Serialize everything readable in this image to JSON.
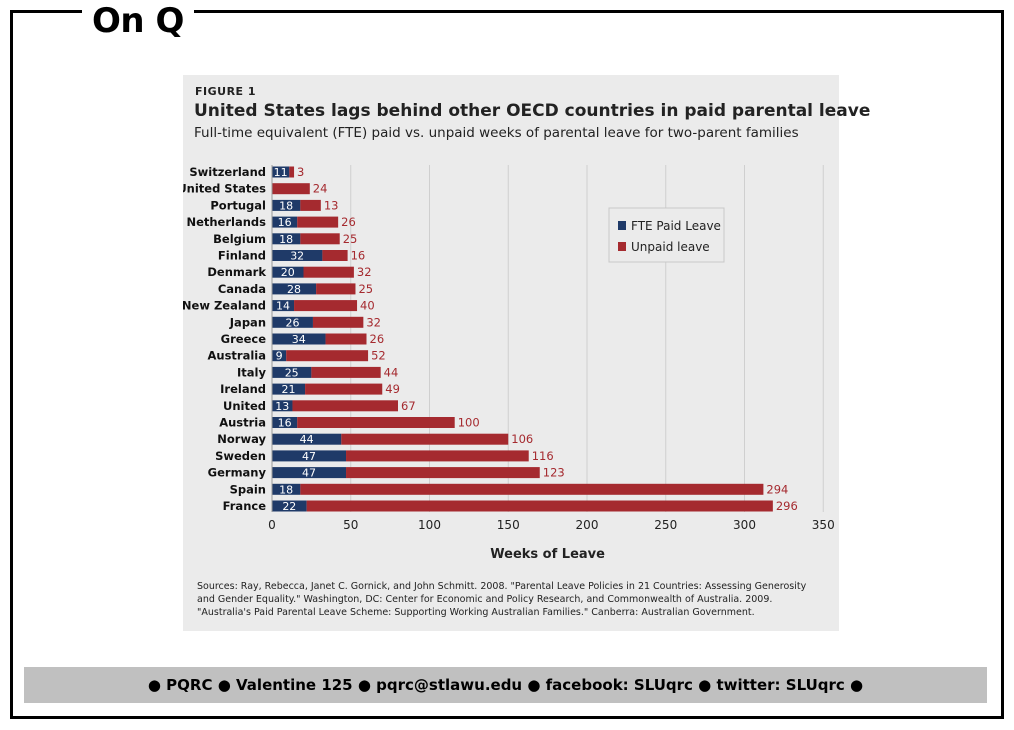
{
  "brand": {
    "title": "On Q"
  },
  "figure": {
    "label": "FIGURE 1",
    "title": "United States lags behind other OECD countries in paid parental leave",
    "subtitle": "Full-time equivalent (FTE) paid vs. unpaid weeks of parental leave for two-parent families",
    "sources": "Sources: Ray, Rebecca, Janet C. Gornick, and John Schmitt. 2008. \"Parental Leave Policies in 21 Countries: Assessing Generosity and Gender Equality.\" Washington, DC: Center for Economic and Policy Research, and Commonwealth of Australia. 2009. \"Australia's Paid Parental Leave Scheme: Supporting Working Australian Families.\" Canberra: Australian Government."
  },
  "footer": {
    "text": "● PQRC ● Valentine 125 ● pqrc@stlawu.edu ● facebook: SLUqrc ● twitter: SLUqrc ●"
  },
  "colors": {
    "paid": "#1f3a68",
    "unpaid": "#a52a2f",
    "grid": "#cfcfcf"
  },
  "chart_data": {
    "type": "bar",
    "orientation": "horizontal",
    "stacked": true,
    "categories": [
      "Switzerland",
      "United States",
      "Portugal",
      "Netherlands",
      "Belgium",
      "Finland",
      "Denmark",
      "Canada",
      "New Zealand",
      "Japan",
      "Greece",
      "Australia",
      "Italy",
      "Ireland",
      "United",
      "Austria",
      "Norway",
      "Sweden",
      "Germany",
      "Spain",
      "France"
    ],
    "series": [
      {
        "name": "FTE Paid Leave",
        "values": [
          11,
          0,
          18,
          16,
          18,
          32,
          20,
          28,
          14,
          26,
          34,
          9,
          25,
          21,
          13,
          16,
          44,
          47,
          47,
          18,
          22
        ]
      },
      {
        "name": "Unpaid leave",
        "values": [
          3,
          24,
          13,
          26,
          25,
          16,
          32,
          25,
          40,
          32,
          26,
          52,
          44,
          49,
          67,
          100,
          106,
          116,
          123,
          294,
          296
        ]
      }
    ],
    "xlabel": "Weeks of Leave",
    "xlim": [
      0,
      350
    ],
    "xticks": [
      0,
      50,
      100,
      150,
      200,
      250,
      300,
      350
    ],
    "legend_position": "upper-right",
    "grid": "vertical"
  }
}
